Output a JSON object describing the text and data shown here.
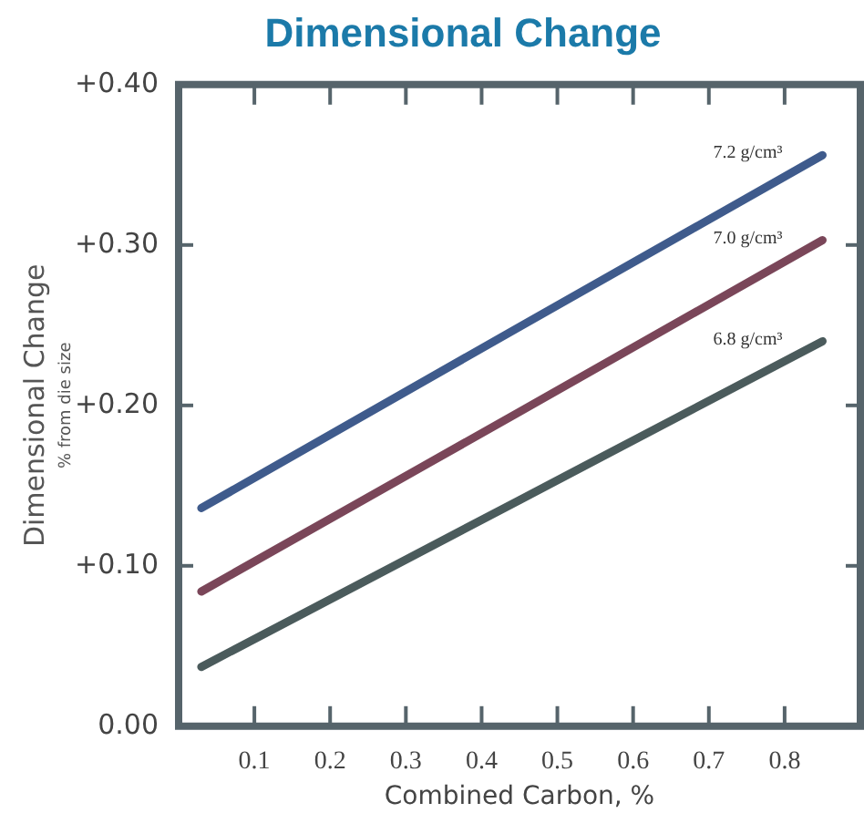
{
  "chart_data": {
    "type": "line",
    "title": "Dimensional Change",
    "xlabel": "Combined Carbon, %",
    "ylabel": "Dimensional Change",
    "subtitle": "% from die size",
    "series": [
      {
        "name": "7.2 g/cm³",
        "color": "#3f5b8c",
        "x": [
          0.03,
          0.45,
          0.85
        ],
        "values": [
          0.136,
          0.249,
          0.356
        ]
      },
      {
        "name": "7.0 g/cm³",
        "color": "#7a4659",
        "x": [
          0.03,
          0.45,
          0.85
        ],
        "values": [
          0.084,
          0.196,
          0.303
        ]
      },
      {
        "name": "6.8 g/cm³",
        "color": "#4b5b5c",
        "x": [
          0.03,
          0.45,
          0.85
        ],
        "values": [
          0.037,
          0.141,
          0.24
        ]
      }
    ],
    "xlim": [
      0,
      0.9
    ],
    "xticks": [
      0.1,
      0.2,
      0.3,
      0.4,
      0.5,
      0.6,
      0.7,
      0.8
    ],
    "ylim": [
      0,
      0.4
    ],
    "yticks": [
      {
        "value": 0,
        "label": "0.00"
      },
      {
        "value": 0.1,
        "label": "+0.10"
      },
      {
        "value": 0.2,
        "label": "+0.20"
      },
      {
        "value": 0.3,
        "label": "+0.30"
      },
      {
        "value": 0.4,
        "label": "+0.40"
      }
    ],
    "grid": false,
    "legend": false,
    "marker": "none",
    "line_style": "solid"
  }
}
